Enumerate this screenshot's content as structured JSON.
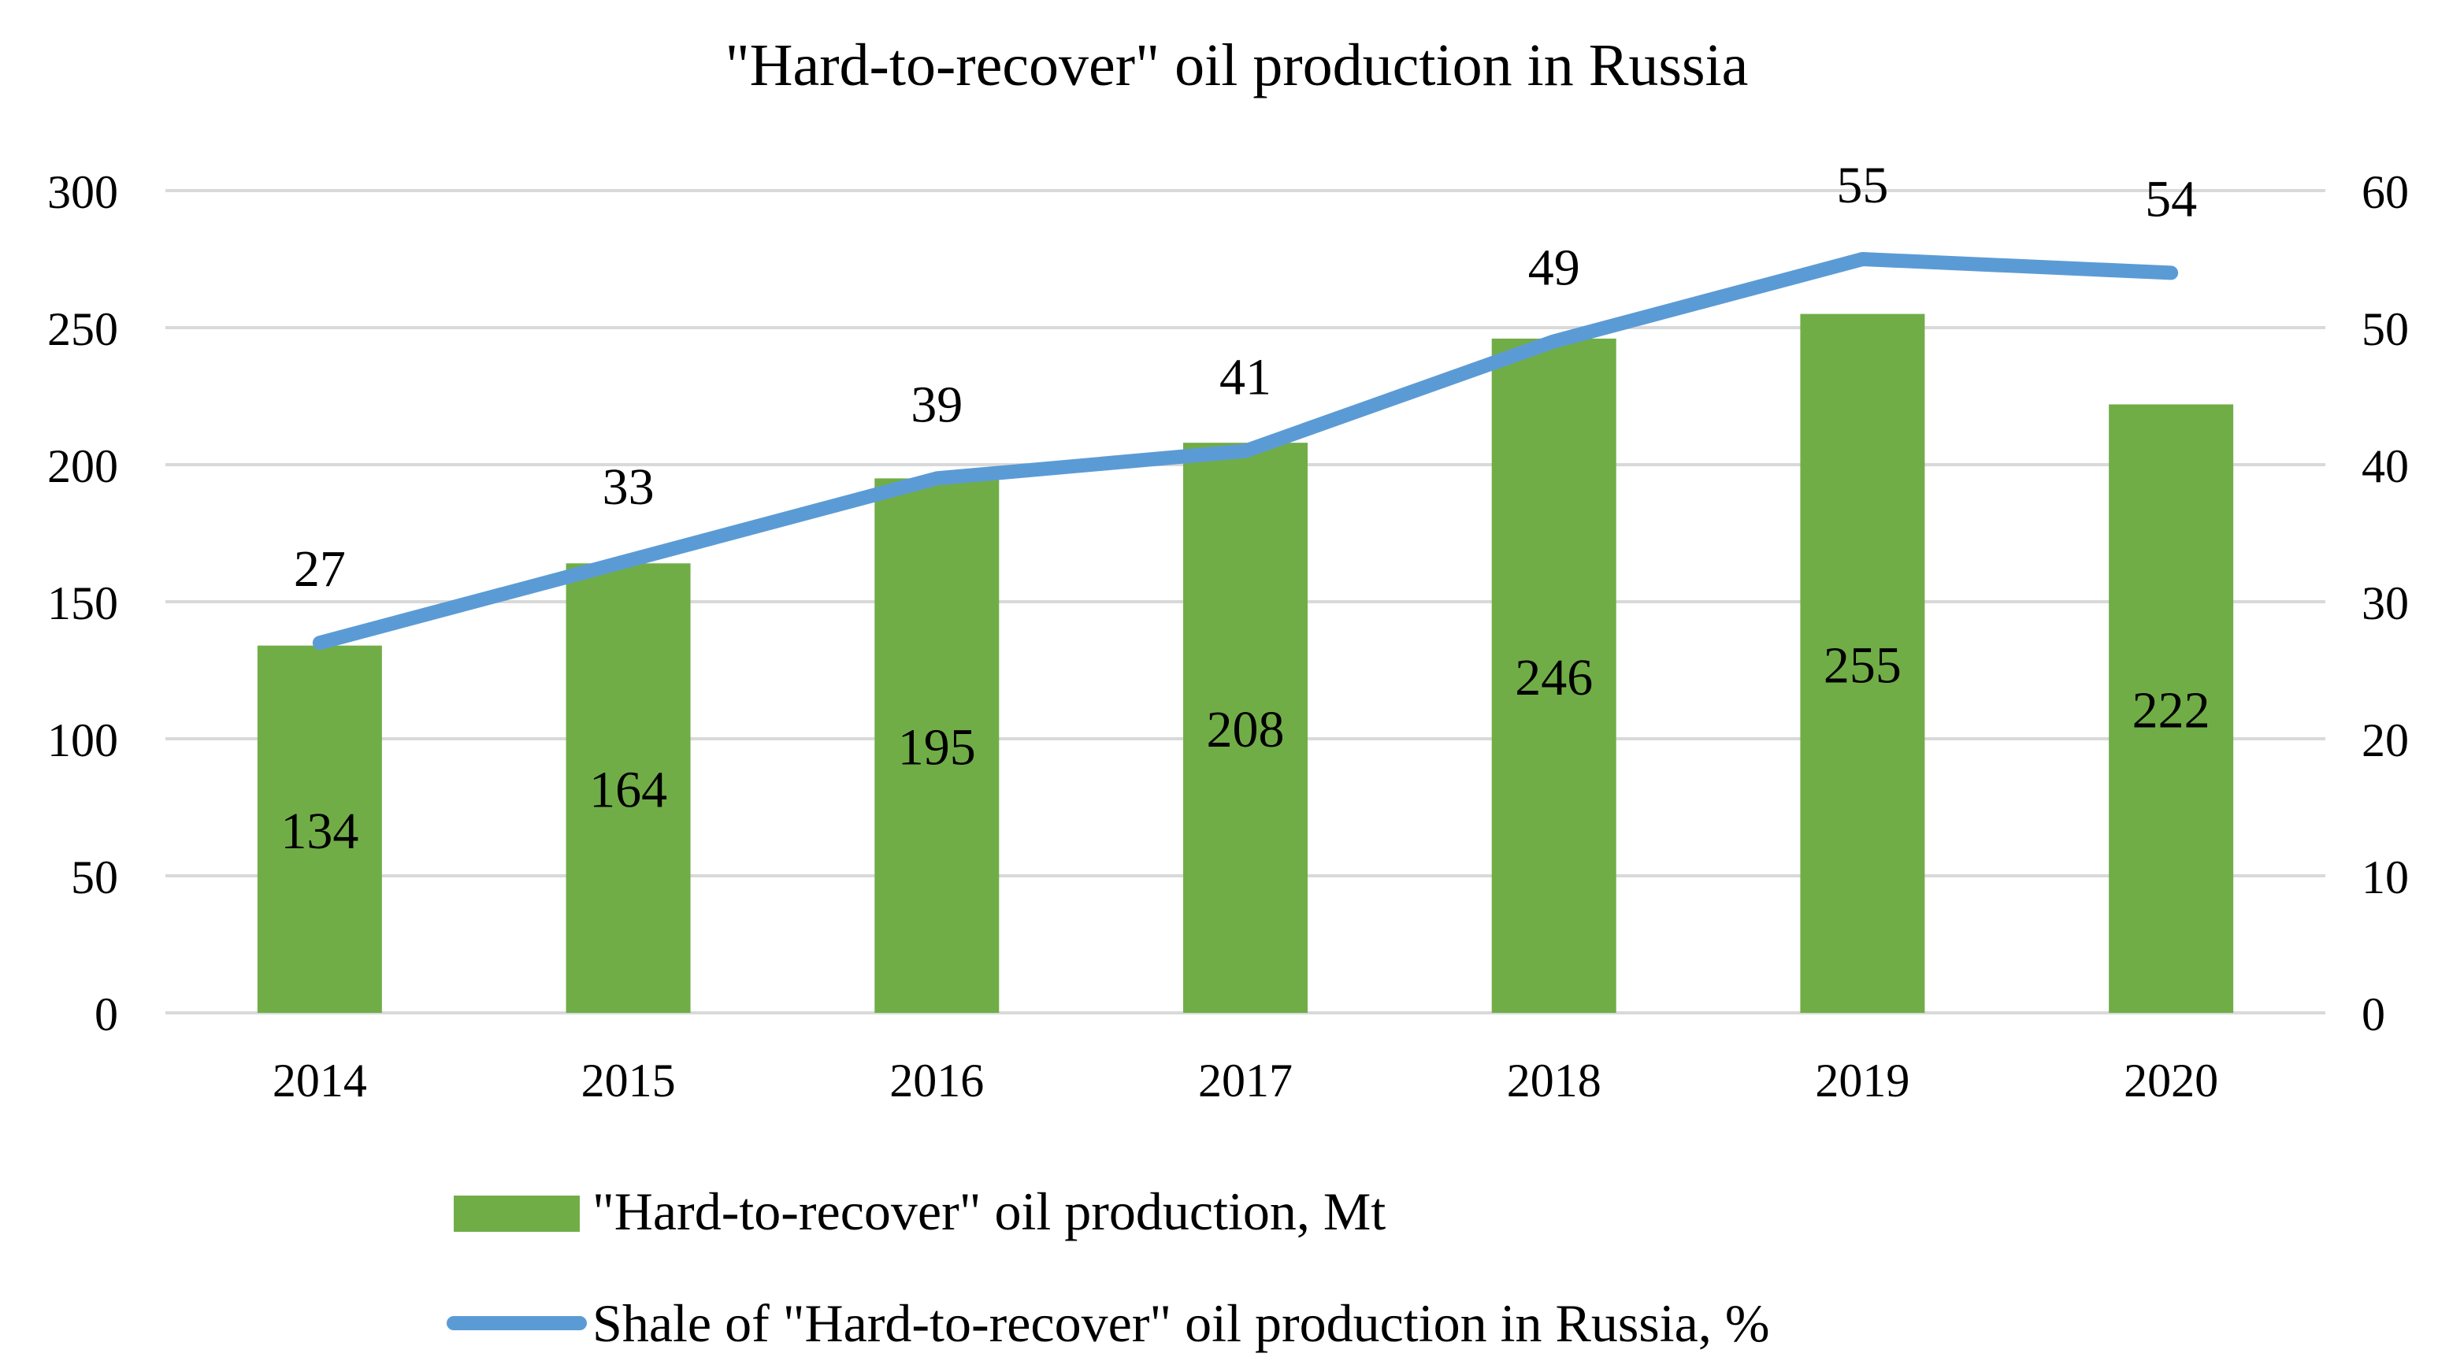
{
  "chart_data": {
    "type": "bar",
    "title": "\"Hard-to-recover\" oil production in Russia",
    "categories": [
      "2014",
      "2015",
      "2016",
      "2017",
      "2018",
      "2019",
      "2020"
    ],
    "series": [
      {
        "name": "\"Hard-to-recover\" oil production, Mt",
        "type": "bar",
        "axis": "left",
        "color": "#70AD47",
        "values": [
          134,
          164,
          195,
          208,
          246,
          255,
          222
        ],
        "labels": [
          "134",
          "164",
          "195",
          "208",
          "246",
          "255",
          "222"
        ]
      },
      {
        "name": "Shale of \"Hard-to-recover\" oil production in Russia, %",
        "type": "line",
        "axis": "right",
        "color": "#5B9BD5",
        "values": [
          27,
          33,
          39,
          41,
          49,
          55,
          54
        ],
        "labels": [
          "27",
          "33",
          "39",
          "41",
          "49",
          "55",
          "54"
        ]
      }
    ],
    "y_left": {
      "min": 0,
      "max": 300,
      "ticks": [
        "0",
        "50",
        "100",
        "150",
        "200",
        "250",
        "300"
      ]
    },
    "y_right": {
      "min": 0,
      "max": 60,
      "ticks": [
        "0",
        "10",
        "20",
        "30",
        "40",
        "50",
        "60"
      ]
    },
    "xlabel": "",
    "ylabel": "",
    "grid": true,
    "legend": "bottom"
  }
}
